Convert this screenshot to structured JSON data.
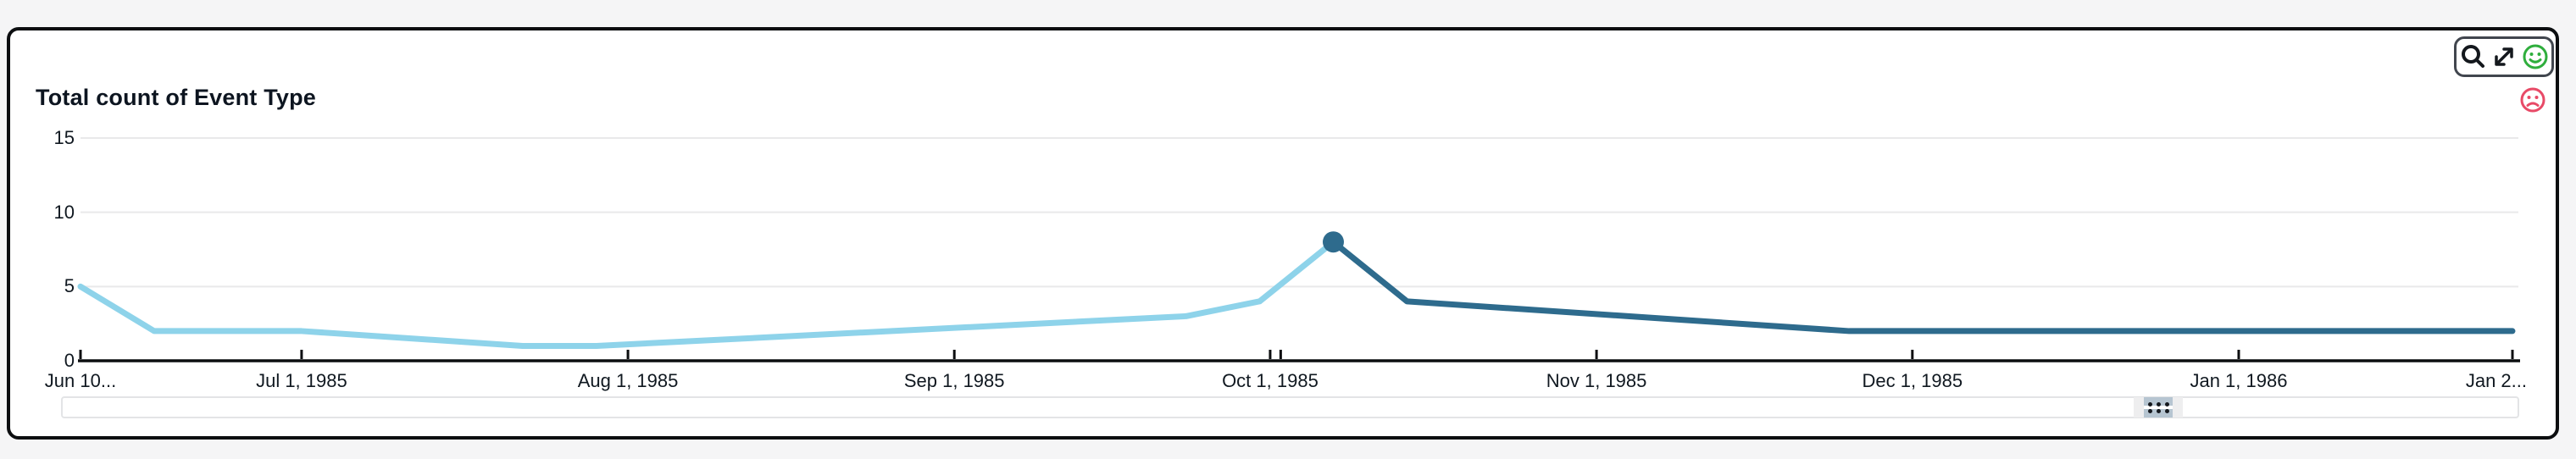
{
  "card": {
    "title": "Total count of Event Type"
  },
  "toolbar": {
    "items": [
      {
        "icon": "magnifier-icon"
      },
      {
        "icon": "maximize-arrows-icon"
      },
      {
        "icon": "smiley-face-icon",
        "color": "#2fae3d"
      }
    ],
    "negative_feedback": {
      "icon": "sad-face-icon",
      "color": "#e84a67"
    }
  },
  "scrollbar": {
    "grip_icon": "drag-dots-icon"
  },
  "colors": {
    "page_bg": "#f5f5f6",
    "card_bg": "#ffffff",
    "card_border": "#0c0e10",
    "grid": "#e9e9ea",
    "axis": "#0c0e10",
    "line_actual": "#8ed3ea",
    "line_highlighted": "#2e6b8d",
    "highlight_dot": "#2e6b8d"
  },
  "chart_data": {
    "type": "line",
    "title": "Total count of Event Type",
    "xlabel": "",
    "ylabel": "",
    "grid": true,
    "legend": "none",
    "y_axis": {
      "ticks": [
        0,
        5,
        10,
        15
      ],
      "min": 0,
      "max": 16
    },
    "x_axis": {
      "unit": "date (weekly points)",
      "ticks": [
        {
          "label": "Jun 10...",
          "day": 0
        },
        {
          "label": "Jul 1, 1985",
          "day": 21
        },
        {
          "label": "Aug 1, 1985",
          "day": 52
        },
        {
          "label": "Sep 1, 1985",
          "day": 83
        },
        {
          "label": "Oct 1, 1985",
          "day": 113
        },
        {
          "label": "",
          "day": 114
        },
        {
          "label": "Nov 1, 1985",
          "day": 144
        },
        {
          "label": "Dec 1, 1985",
          "day": 174
        },
        {
          "label": "Jan 1, 1986",
          "day": 205
        },
        {
          "label": "Jan 2...",
          "day": 231
        }
      ]
    },
    "highlight_from_day": 119,
    "highlighted_point": {
      "date": "Oct 7, 1985",
      "value": 8
    },
    "points": [
      {
        "date": "Jun 10, 1985",
        "day": 0,
        "value": 5
      },
      {
        "date": "Jun 17, 1985",
        "day": 7,
        "value": 2
      },
      {
        "date": "Jul 1, 1985",
        "day": 21,
        "value": 2
      },
      {
        "date": "Jul 22, 1985",
        "day": 42,
        "value": 1
      },
      {
        "date": "Jul 29, 1985",
        "day": 49,
        "value": 1
      },
      {
        "date": "Sep 23, 1985",
        "day": 105,
        "value": 3
      },
      {
        "date": "Sep 30, 1985",
        "day": 112,
        "value": 4
      },
      {
        "date": "Oct 7, 1985",
        "day": 119,
        "value": 8
      },
      {
        "date": "Oct 14, 1985",
        "day": 126,
        "value": 4
      },
      {
        "date": "Nov 4, 1985",
        "day": 147,
        "value": 3
      },
      {
        "date": "Nov 25, 1985",
        "day": 168,
        "value": 2
      },
      {
        "date": "Jan 27, 1986",
        "day": 231,
        "value": 2
      }
    ]
  }
}
